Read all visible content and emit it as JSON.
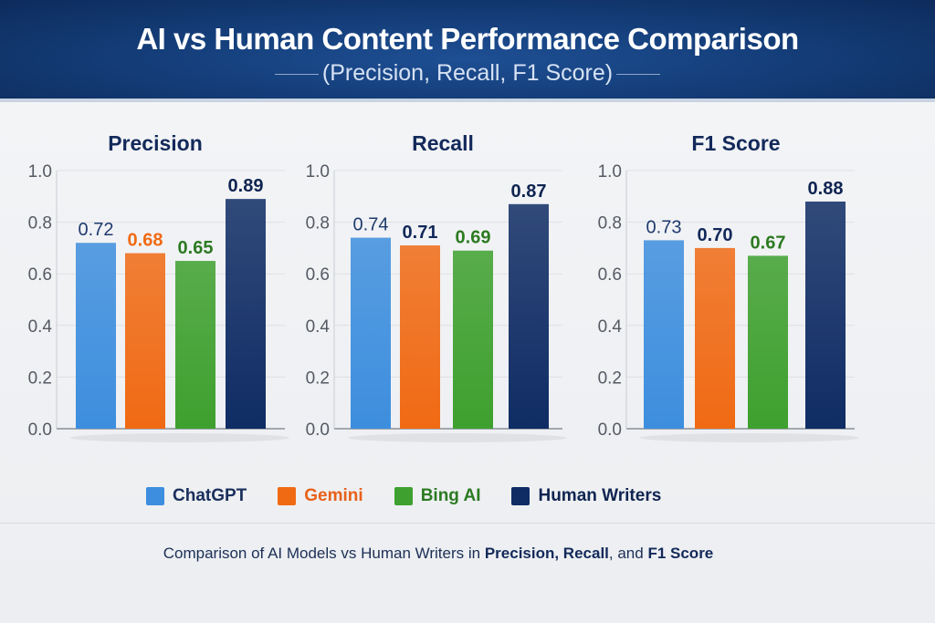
{
  "header": {
    "title": "AI vs Human Content Performance Comparison",
    "subtitle": "(Precision, Recall, F1 Score)"
  },
  "colors": {
    "ChatGPT": "#3d8ede",
    "Gemini": "#f06a14",
    "Bing AI": "#3ea02e",
    "Human Writers": "#0f2c64"
  },
  "legend": [
    {
      "label": "ChatGPT",
      "color": "#3d8ede",
      "text_color": "#1a2f5c"
    },
    {
      "label": "Gemini",
      "color": "#f06a14",
      "text_color": "#e8611a"
    },
    {
      "label": "Bing AI",
      "color": "#3ea02e",
      "text_color": "#2c7a22"
    },
    {
      "label": "Human Writers",
      "color": "#0f2c64",
      "text_color": "#0f2450"
    }
  ],
  "caption": {
    "prefix": "Comparison of AI Models vs Human Writers in ",
    "bold1": "Precision, Recall",
    "mid": ", and ",
    "bold2": "F1 Score"
  },
  "chart_data": [
    {
      "type": "bar",
      "title": "Precision",
      "categories": [
        "ChatGPT",
        "Gemini",
        "Bing AI",
        "Human Writers"
      ],
      "values": [
        0.72,
        0.68,
        0.65,
        0.89
      ],
      "value_labels": [
        "0.72",
        "0.68",
        "0.65",
        "0.89"
      ],
      "label_colors": [
        "#1f3a6e",
        "#f06a14",
        "#2c7a22",
        "#0f2450"
      ],
      "ylim": [
        0,
        1.0
      ],
      "yticks": [
        "0.0",
        "0.2",
        "0.4",
        "0.6",
        "0.8",
        "1.0"
      ],
      "grid": true
    },
    {
      "type": "bar",
      "title": "Recall",
      "categories": [
        "ChatGPT",
        "Gemini",
        "Bing AI",
        "Human Writers"
      ],
      "values": [
        0.74,
        0.71,
        0.69,
        0.87
      ],
      "value_labels": [
        "0.74",
        "0.71",
        "0.69",
        "0.87"
      ],
      "label_colors": [
        "#1f3a6e",
        "#13295a",
        "#2c7a22",
        "#0f2450"
      ],
      "ylim": [
        0,
        1.0
      ],
      "yticks": [
        "0.0",
        "0.2",
        "0.4",
        "0.6",
        "0.8",
        "1.0"
      ],
      "grid": true
    },
    {
      "type": "bar",
      "title": "F1 Score",
      "categories": [
        "ChatGPT",
        "Gemini",
        "Bing AI",
        "Human Writers"
      ],
      "values": [
        0.73,
        0.7,
        0.67,
        0.88
      ],
      "value_labels": [
        "0.73",
        "0.70",
        "0.67",
        "0.88"
      ],
      "label_colors": [
        "#1f3a6e",
        "#13295a",
        "#2c7a22",
        "#0f2450"
      ],
      "ylim": [
        0,
        1.0
      ],
      "yticks": [
        "0.0",
        "0.2",
        "0.4",
        "0.6",
        "0.8",
        "1.0"
      ],
      "grid": true
    }
  ]
}
